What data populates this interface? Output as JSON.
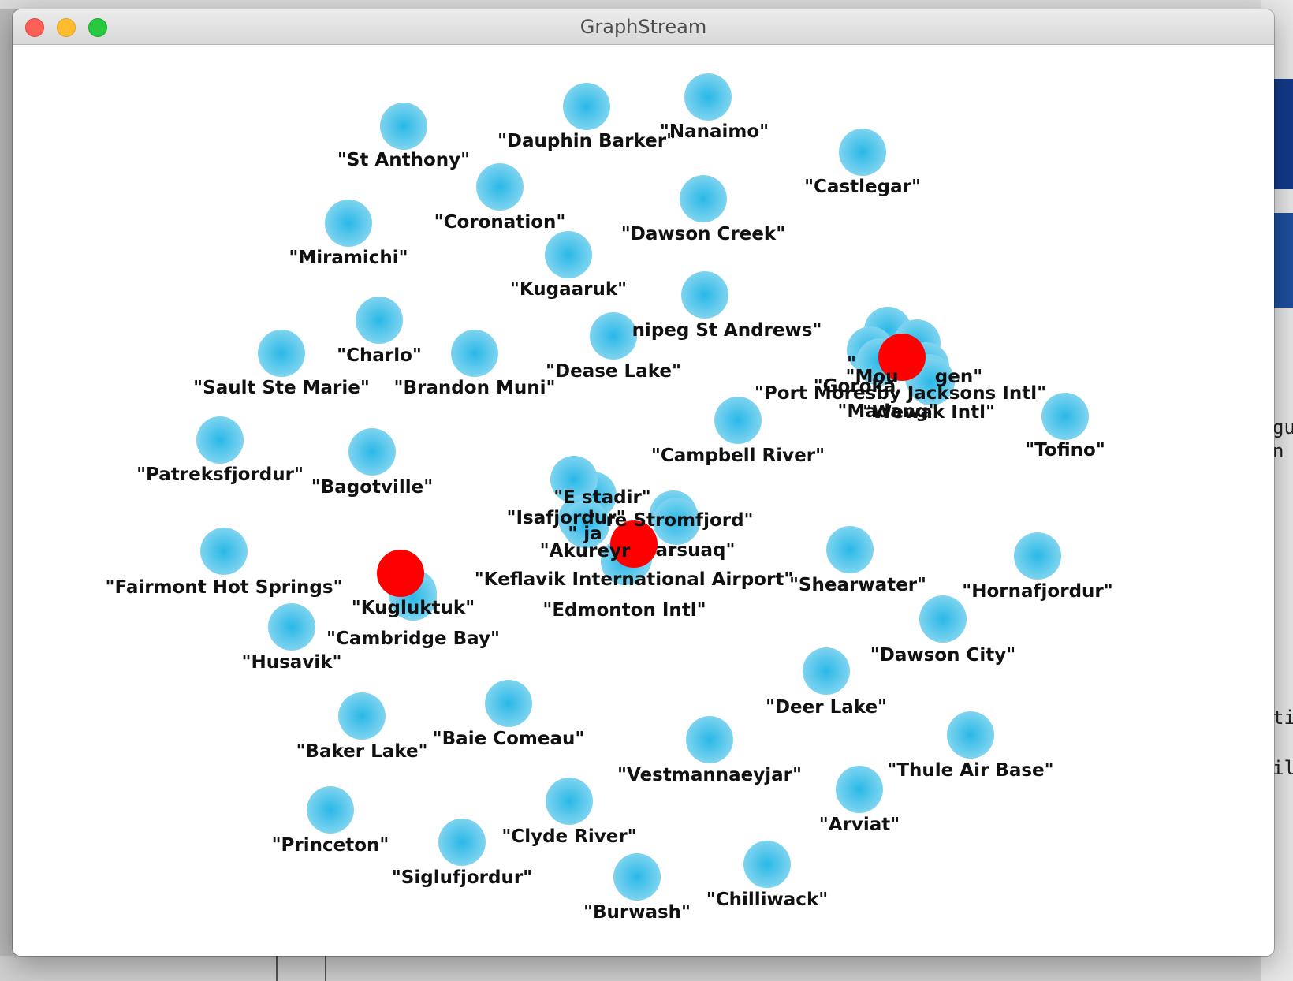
{
  "window": {
    "title": "GraphStream"
  },
  "colors": {
    "node_fill": "#7fd4ef",
    "node_center": "#29b8e8",
    "highlight_fill": "#ff0000",
    "label": "#111111"
  },
  "graph": {
    "nodes": [
      {
        "id": "st-anthony",
        "label": "\"St Anthony\"",
        "type": "normal"
      },
      {
        "id": "dauphin-barker",
        "label": "\"Dauphin Barker\"",
        "type": "normal"
      },
      {
        "id": "nanaimo",
        "label": "\"Nanaimo\"",
        "type": "normal"
      },
      {
        "id": "castlegar",
        "label": "\"Castlegar\"",
        "type": "normal"
      },
      {
        "id": "coronation",
        "label": "\"Coronation\"",
        "type": "normal"
      },
      {
        "id": "dawson-creek",
        "label": "\"Dawson Creek\"",
        "type": "normal"
      },
      {
        "id": "miramichi",
        "label": "\"Miramichi\"",
        "type": "normal"
      },
      {
        "id": "kugaaruk",
        "label": "\"Kugaaruk\"",
        "type": "normal"
      },
      {
        "id": "winnipeg-st-andrews",
        "label": "nipeg St Andrews\"",
        "type": "normal"
      },
      {
        "id": "charlo",
        "label": "\"Charlo\"",
        "type": "normal"
      },
      {
        "id": "dease-lake",
        "label": "\"Dease Lake\"",
        "type": "normal"
      },
      {
        "id": "sault-ste-marie",
        "label": "\"Sault Ste Marie\"",
        "type": "normal"
      },
      {
        "id": "brandon-muni",
        "label": "\"Brandon Muni\"",
        "type": "normal"
      },
      {
        "id": "png-cluster-1",
        "label": "\"",
        "type": "normal"
      },
      {
        "id": "mount-hagen",
        "label": "\"Mou",
        "type": "normal"
      },
      {
        "id": "hagen-tail",
        "label": "gen\"",
        "type": "normal"
      },
      {
        "id": "goroka",
        "label": "\"Goroka",
        "type": "normal"
      },
      {
        "id": "port-moresby",
        "label": "\"Port Moresby Jacksons Intl\"",
        "type": "normal"
      },
      {
        "id": "madang",
        "label": "\"Madang\"",
        "type": "normal"
      },
      {
        "id": "wewak",
        "label": "\"Wewak Intl\"",
        "type": "normal"
      },
      {
        "id": "png-hub",
        "label": "",
        "type": "highlight"
      },
      {
        "id": "tofino",
        "label": "\"Tofino\"",
        "type": "normal"
      },
      {
        "id": "campbell-river",
        "label": "\"Campbell River\"",
        "type": "normal"
      },
      {
        "id": "patreksfjordur",
        "label": "\"Patreksfjordur\"",
        "type": "normal"
      },
      {
        "id": "bagotville",
        "label": "\"Bagotville\"",
        "type": "normal"
      },
      {
        "id": "egilsstadir",
        "label": "\"E    stadir\"",
        "type": "normal"
      },
      {
        "id": "isafjordur",
        "label": "\"Isafjordur\"",
        "type": "normal"
      },
      {
        "id": "sondre-stromfjord",
        "label": "\"   re Stromfjord\"",
        "type": "normal"
      },
      {
        "id": "iceland-mid",
        "label": "\"    ja",
        "type": "normal"
      },
      {
        "id": "akureyri",
        "label": "\"Akureyr",
        "type": "normal"
      },
      {
        "id": "narsarsuaq",
        "label": "arsuaq\"",
        "type": "normal"
      },
      {
        "id": "iceland-hub",
        "label": "",
        "type": "highlight"
      },
      {
        "id": "keflavik",
        "label": "\"Keflavik International Airport\"",
        "type": "normal"
      },
      {
        "id": "edmonton-intl",
        "label": "\"Edmonton Intl\"",
        "type": "normal"
      },
      {
        "id": "shearwater",
        "label": "\"Shearwater\"",
        "type": "normal"
      },
      {
        "id": "hornafjordur",
        "label": "\"Hornafjordur\"",
        "type": "normal"
      },
      {
        "id": "fairmont-hot-springs",
        "label": "\"Fairmont Hot Springs\"",
        "type": "normal"
      },
      {
        "id": "kugluktuk",
        "label": "\"Kugluktuk\"",
        "type": "normal"
      },
      {
        "id": "kugluktuk-hub",
        "label": "",
        "type": "highlight"
      },
      {
        "id": "cambridge-bay",
        "label": "\"Cambridge Bay\"",
        "type": "normal"
      },
      {
        "id": "husavik",
        "label": "\"Husavik\"",
        "type": "normal"
      },
      {
        "id": "dawson-city",
        "label": "\"Dawson City\"",
        "type": "normal"
      },
      {
        "id": "deer-lake",
        "label": "\"Deer Lake\"",
        "type": "normal"
      },
      {
        "id": "baie-comeau",
        "label": "\"Baie Comeau\"",
        "type": "normal"
      },
      {
        "id": "baker-lake",
        "label": "\"Baker Lake\"",
        "type": "normal"
      },
      {
        "id": "vestmannaeyjar",
        "label": "\"Vestmannaeyjar\"",
        "type": "normal"
      },
      {
        "id": "thule-air-base",
        "label": "\"Thule Air Base\"",
        "type": "normal"
      },
      {
        "id": "arviat",
        "label": "\"Arviat\"",
        "type": "normal"
      },
      {
        "id": "clyde-river",
        "label": "\"Clyde River\"",
        "type": "normal"
      },
      {
        "id": "princeton",
        "label": "\"Princeton\"",
        "type": "normal"
      },
      {
        "id": "siglufjordur",
        "label": "\"Siglufjordur\"",
        "type": "normal"
      },
      {
        "id": "chilliwack",
        "label": "\"Chilliwack\"",
        "type": "normal"
      },
      {
        "id": "burwash",
        "label": "\"Burwash\"",
        "type": "normal"
      }
    ]
  },
  "background": {
    "right_fragments": [
      "gu",
      "n t",
      "ti",
      "il"
    ]
  }
}
